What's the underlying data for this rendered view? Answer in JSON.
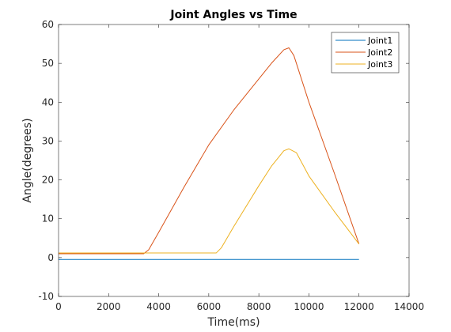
{
  "chart_data": {
    "type": "line",
    "title": "Joint Angles vs Time",
    "xlabel": "Time(ms)",
    "ylabel": "Angle(degrees)",
    "xlim": [
      0,
      14000
    ],
    "ylim": [
      -10,
      60
    ],
    "xticks": [
      0,
      2000,
      4000,
      6000,
      8000,
      10000,
      12000,
      14000
    ],
    "yticks": [
      -10,
      0,
      10,
      20,
      30,
      40,
      50,
      60
    ],
    "grid": false,
    "legend_position": "top-right",
    "series": [
      {
        "name": "Joint1",
        "color": "#0072BD",
        "x": [
          0,
          1000,
          2000,
          3000,
          4000,
          5000,
          6000,
          7000,
          8000,
          9000,
          10000,
          11000,
          12000
        ],
        "y": [
          -0.5,
          -0.5,
          -0.5,
          -0.5,
          -0.5,
          -0.5,
          -0.5,
          -0.5,
          -0.5,
          -0.5,
          -0.5,
          -0.5,
          -0.5
        ]
      },
      {
        "name": "Joint2",
        "color": "#D95319",
        "x": [
          0,
          1000,
          2000,
          3000,
          3400,
          3600,
          4000,
          5000,
          6000,
          7000,
          8000,
          8500,
          9000,
          9200,
          9400,
          10000,
          11000,
          12000
        ],
        "y": [
          1.0,
          1.0,
          1.0,
          1.0,
          1.0,
          2.0,
          6.5,
          18.0,
          29.0,
          38.0,
          46.0,
          50.0,
          53.5,
          54.0,
          52.0,
          40.0,
          22.0,
          3.5
        ]
      },
      {
        "name": "Joint3",
        "color": "#EDB120",
        "x": [
          0,
          1000,
          2000,
          3000,
          4000,
          5000,
          6000,
          6300,
          6500,
          7000,
          8000,
          8500,
          9000,
          9200,
          9500,
          10000,
          11000,
          12000
        ],
        "y": [
          1.2,
          1.2,
          1.2,
          1.2,
          1.2,
          1.2,
          1.2,
          1.2,
          2.5,
          8.0,
          18.5,
          23.5,
          27.5,
          28.0,
          27.0,
          21.0,
          12.0,
          3.5
        ]
      }
    ]
  }
}
